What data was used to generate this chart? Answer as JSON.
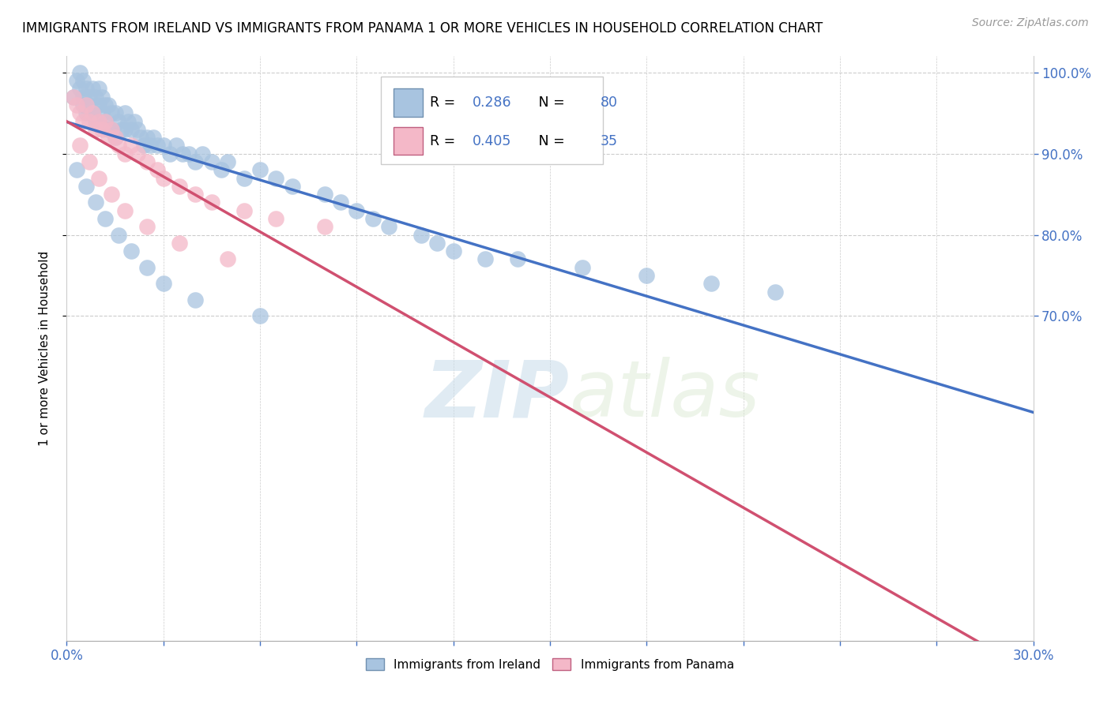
{
  "title": "IMMIGRANTS FROM IRELAND VS IMMIGRANTS FROM PANAMA 1 OR MORE VEHICLES IN HOUSEHOLD CORRELATION CHART",
  "source": "Source: ZipAtlas.com",
  "legend_ireland": "Immigrants from Ireland",
  "legend_panama": "Immigrants from Panama",
  "ylabel_label": "1 or more Vehicles in Household",
  "R_ireland": 0.286,
  "N_ireland": 80,
  "R_panama": 0.405,
  "N_panama": 35,
  "ireland_color": "#a8c4e0",
  "panama_color": "#f4b8c8",
  "ireland_line_color": "#4472c4",
  "panama_line_color": "#d05070",
  "xmin": 0.0,
  "xmax": 0.3,
  "ymin": 0.3,
  "ymax": 1.02,
  "ireland_x": [
    0.002,
    0.003,
    0.004,
    0.004,
    0.005,
    0.005,
    0.005,
    0.006,
    0.006,
    0.007,
    0.007,
    0.008,
    0.008,
    0.009,
    0.009,
    0.01,
    0.01,
    0.01,
    0.011,
    0.011,
    0.012,
    0.012,
    0.013,
    0.013,
    0.014,
    0.014,
    0.015,
    0.015,
    0.016,
    0.017,
    0.018,
    0.018,
    0.019,
    0.02,
    0.021,
    0.022,
    0.023,
    0.024,
    0.025,
    0.026,
    0.027,
    0.028,
    0.03,
    0.032,
    0.034,
    0.036,
    0.038,
    0.04,
    0.042,
    0.045,
    0.048,
    0.05,
    0.055,
    0.06,
    0.065,
    0.07,
    0.08,
    0.085,
    0.09,
    0.095,
    0.1,
    0.11,
    0.115,
    0.12,
    0.13,
    0.14,
    0.16,
    0.18,
    0.2,
    0.22,
    0.003,
    0.006,
    0.009,
    0.012,
    0.016,
    0.02,
    0.025,
    0.03,
    0.04,
    0.06
  ],
  "ireland_y": [
    0.97,
    0.99,
    0.98,
    1.0,
    0.99,
    0.97,
    0.96,
    0.98,
    0.95,
    0.97,
    0.96,
    0.98,
    0.95,
    0.97,
    0.94,
    0.98,
    0.96,
    0.94,
    0.97,
    0.95,
    0.96,
    0.94,
    0.96,
    0.93,
    0.95,
    0.93,
    0.95,
    0.92,
    0.94,
    0.93,
    0.95,
    0.93,
    0.94,
    0.93,
    0.94,
    0.93,
    0.92,
    0.91,
    0.92,
    0.91,
    0.92,
    0.91,
    0.91,
    0.9,
    0.91,
    0.9,
    0.9,
    0.89,
    0.9,
    0.89,
    0.88,
    0.89,
    0.87,
    0.88,
    0.87,
    0.86,
    0.85,
    0.84,
    0.83,
    0.82,
    0.81,
    0.8,
    0.79,
    0.78,
    0.77,
    0.77,
    0.76,
    0.75,
    0.74,
    0.73,
    0.88,
    0.86,
    0.84,
    0.82,
    0.8,
    0.78,
    0.76,
    0.74,
    0.72,
    0.7
  ],
  "panama_x": [
    0.002,
    0.003,
    0.004,
    0.005,
    0.006,
    0.007,
    0.008,
    0.009,
    0.01,
    0.011,
    0.012,
    0.013,
    0.014,
    0.015,
    0.016,
    0.018,
    0.02,
    0.022,
    0.025,
    0.028,
    0.03,
    0.035,
    0.04,
    0.045,
    0.055,
    0.065,
    0.08,
    0.004,
    0.007,
    0.01,
    0.014,
    0.018,
    0.025,
    0.035,
    0.05
  ],
  "panama_y": [
    0.97,
    0.96,
    0.95,
    0.94,
    0.96,
    0.94,
    0.95,
    0.93,
    0.94,
    0.93,
    0.94,
    0.92,
    0.93,
    0.92,
    0.91,
    0.9,
    0.91,
    0.9,
    0.89,
    0.88,
    0.87,
    0.86,
    0.85,
    0.84,
    0.83,
    0.82,
    0.81,
    0.91,
    0.89,
    0.87,
    0.85,
    0.83,
    0.81,
    0.79,
    0.77
  ],
  "yticks": [
    0.7,
    0.8,
    0.9,
    1.0
  ],
  "ytick_labels": [
    "70.0%",
    "80.0%",
    "90.0%",
    "100.0%"
  ]
}
